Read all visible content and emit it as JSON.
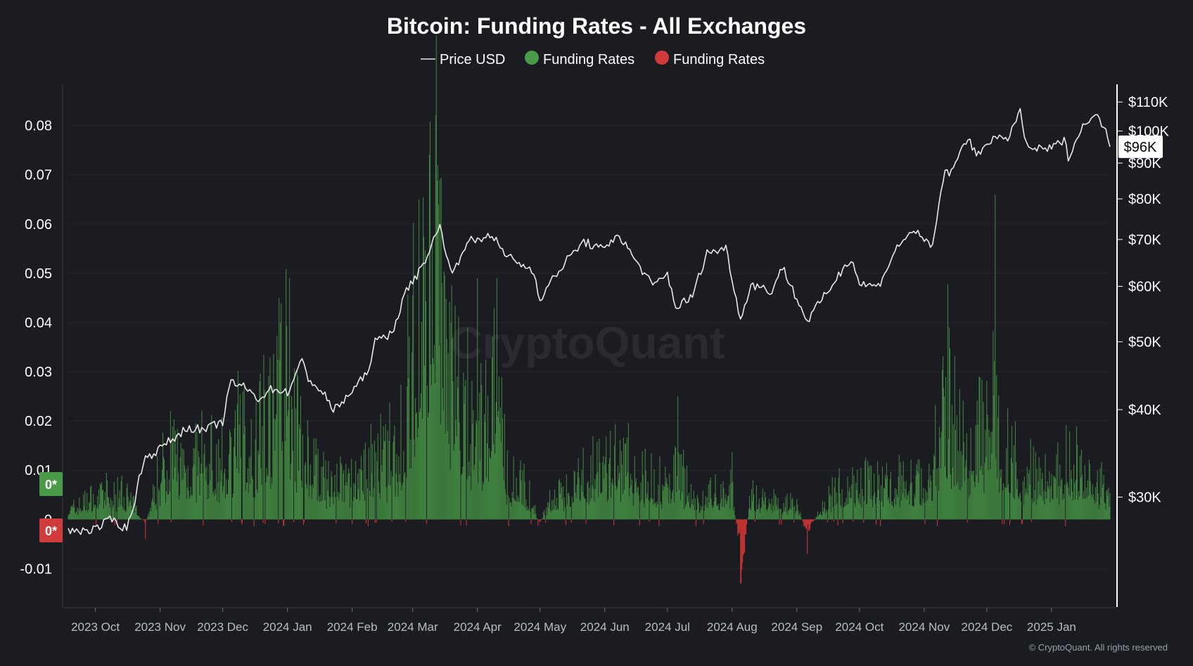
{
  "chart_data": {
    "type": "bar",
    "title": "Bitcoin: Funding Rates - All Exchanges",
    "legend": [
      {
        "name": "Price USD",
        "color": "#e8e8e8",
        "symbol": "line"
      },
      {
        "name": "Funding Rates",
        "color": "#4a9a4a",
        "symbol": "dot"
      },
      {
        "name": "Funding Rates",
        "color": "#d23b3b",
        "symbol": "dot"
      }
    ],
    "left_axis": {
      "ticks": [
        -0.01,
        0,
        0.01,
        0.02,
        0.03,
        0.04,
        0.05,
        0.06,
        0.07,
        0.08
      ],
      "tick_labels": [
        "-0.01",
        "0",
        "0.01",
        "0.02",
        "0.03",
        "0.04",
        "0.05",
        "0.06",
        "0.07",
        "0.08"
      ],
      "ylim": [
        -0.0175,
        0.0875
      ]
    },
    "right_axis": {
      "scale": "log",
      "ticks": [
        30000,
        40000,
        50000,
        60000,
        70000,
        80000,
        90000,
        100000,
        110000
      ],
      "tick_labels": [
        "$30K",
        "$40K",
        "$50K",
        "$60K",
        "$70K",
        "$80K",
        "$90K",
        "$100K",
        "$110K"
      ],
      "ylim": [
        21000,
        115000
      ]
    },
    "x_axis": {
      "range": [
        "2023-09-18",
        "2025-01-29"
      ],
      "ticks": [
        "2023-10-01",
        "2023-11-01",
        "2023-12-01",
        "2024-01-01",
        "2024-02-01",
        "2024-03-01",
        "2024-04-01",
        "2024-05-01",
        "2024-06-01",
        "2024-07-01",
        "2024-08-01",
        "2024-09-01",
        "2024-10-01",
        "2024-11-01",
        "2024-12-01",
        "2025-01-01"
      ],
      "tick_labels": [
        "2023 Oct",
        "2023 Nov",
        "2023 Dec",
        "2024 Jan",
        "2024 Feb",
        "2024 Mar",
        "2024 Apr",
        "2024 May",
        "2024 Jun",
        "2024 Jul",
        "2024 Aug",
        "2024 Sep",
        "2024 Oct",
        "2024 Nov",
        "2024 Dec",
        "2025 Jan"
      ]
    },
    "zero_badges": [
      "0*",
      "0*"
    ],
    "current_price_label": "$96K",
    "funding_anchors": [
      [
        "2023-09-18",
        0.002
      ],
      [
        "2023-10-01",
        0.005
      ],
      [
        "2023-10-15",
        0.006
      ],
      [
        "2023-10-25",
        -0.001
      ],
      [
        "2023-11-01",
        0.01
      ],
      [
        "2023-11-08",
        0.014
      ],
      [
        "2023-11-15",
        0.012
      ],
      [
        "2023-11-22",
        0.013
      ],
      [
        "2023-12-01",
        0.012
      ],
      [
        "2023-12-05",
        0.016
      ],
      [
        "2023-12-10",
        0.019
      ],
      [
        "2023-12-15",
        0.014
      ],
      [
        "2023-12-20",
        0.02
      ],
      [
        "2023-12-25",
        0.024
      ],
      [
        "2023-12-28",
        0.033
      ],
      [
        "2024-01-01",
        0.03
      ],
      [
        "2024-01-05",
        0.02
      ],
      [
        "2024-01-12",
        0.012
      ],
      [
        "2024-01-20",
        0.007
      ],
      [
        "2024-02-01",
        0.009
      ],
      [
        "2024-02-10",
        0.012
      ],
      [
        "2024-02-18",
        0.013
      ],
      [
        "2024-02-25",
        0.018
      ],
      [
        "2024-03-01",
        0.035
      ],
      [
        "2024-03-05",
        0.05
      ],
      [
        "2024-03-10",
        0.062
      ],
      [
        "2024-03-14",
        0.056
      ],
      [
        "2024-03-18",
        0.035
      ],
      [
        "2024-03-25",
        0.024
      ],
      [
        "2024-04-01",
        0.019
      ],
      [
        "2024-04-05",
        0.022
      ],
      [
        "2024-04-10",
        0.03
      ],
      [
        "2024-04-15",
        0.01
      ],
      [
        "2024-04-25",
        0.006
      ],
      [
        "2024-05-01",
        -0.001
      ],
      [
        "2024-05-05",
        0.004
      ],
      [
        "2024-05-15",
        0.006
      ],
      [
        "2024-05-25",
        0.01
      ],
      [
        "2024-06-01",
        0.012
      ],
      [
        "2024-06-10",
        0.012
      ],
      [
        "2024-06-20",
        0.009
      ],
      [
        "2024-07-01",
        0.007
      ],
      [
        "2024-07-05",
        0.011
      ],
      [
        "2024-07-15",
        0.004
      ],
      [
        "2024-07-25",
        0.006
      ],
      [
        "2024-08-01",
        0.008
      ],
      [
        "2024-08-05",
        -0.01
      ],
      [
        "2024-08-10",
        0.005
      ],
      [
        "2024-08-20",
        0.004
      ],
      [
        "2024-09-01",
        0.003
      ],
      [
        "2024-09-06",
        -0.003
      ],
      [
        "2024-09-12",
        0.002
      ],
      [
        "2024-09-20",
        0.006
      ],
      [
        "2024-10-01",
        0.007
      ],
      [
        "2024-10-15",
        0.008
      ],
      [
        "2024-10-25",
        0.009
      ],
      [
        "2024-11-01",
        0.007
      ],
      [
        "2024-11-06",
        0.014
      ],
      [
        "2024-11-12",
        0.028
      ],
      [
        "2024-11-18",
        0.016
      ],
      [
        "2024-11-25",
        0.018
      ],
      [
        "2024-12-01",
        0.02
      ],
      [
        "2024-12-05",
        0.022
      ],
      [
        "2024-12-12",
        0.013
      ],
      [
        "2024-12-20",
        0.01
      ],
      [
        "2025-01-01",
        0.009
      ],
      [
        "2025-01-10",
        0.012
      ],
      [
        "2025-01-29",
        0.006
      ]
    ],
    "funding_spikes": [
      [
        "2024-03-12",
        0.082
      ],
      [
        "2024-03-09",
        0.074
      ],
      [
        "2024-03-04",
        0.065
      ],
      [
        "2024-03-14",
        0.069
      ],
      [
        "2024-04-01",
        0.049
      ],
      [
        "2024-01-02",
        0.049
      ],
      [
        "2023-12-28",
        0.045
      ],
      [
        "2024-12-05",
        0.066
      ],
      [
        "2024-11-13",
        0.039
      ],
      [
        "2024-08-05",
        -0.013
      ],
      [
        "2024-09-06",
        -0.007
      ],
      [
        "2024-07-06",
        0.025
      ],
      [
        "2023-11-06",
        0.022
      ],
      [
        "2023-10-25",
        -0.004
      ]
    ],
    "price_anchors": [
      [
        "2023-09-18",
        26800
      ],
      [
        "2023-10-01",
        27000
      ],
      [
        "2023-10-09",
        27900
      ],
      [
        "2023-10-16",
        27000
      ],
      [
        "2023-10-20",
        29800
      ],
      [
        "2023-10-24",
        33900
      ],
      [
        "2023-11-01",
        35200
      ],
      [
        "2023-11-09",
        36700
      ],
      [
        "2023-11-15",
        37800
      ],
      [
        "2023-11-22",
        37300
      ],
      [
        "2023-12-01",
        38500
      ],
      [
        "2023-12-05",
        43800
      ],
      [
        "2023-12-10",
        43300
      ],
      [
        "2023-12-18",
        41500
      ],
      [
        "2023-12-25",
        42900
      ],
      [
        "2024-01-01",
        42300
      ],
      [
        "2024-01-08",
        46900
      ],
      [
        "2024-01-11",
        44400
      ],
      [
        "2024-01-20",
        41500
      ],
      [
        "2024-01-23",
        39800
      ],
      [
        "2024-02-01",
        42500
      ],
      [
        "2024-02-08",
        45000
      ],
      [
        "2024-02-12",
        49900
      ],
      [
        "2024-02-20",
        51500
      ],
      [
        "2024-02-28",
        60000
      ],
      [
        "2024-03-05",
        63500
      ],
      [
        "2024-03-14",
        73000
      ],
      [
        "2024-03-20",
        62000
      ],
      [
        "2024-03-27",
        69800
      ],
      [
        "2024-04-01",
        69600
      ],
      [
        "2024-04-08",
        71500
      ],
      [
        "2024-04-13",
        67000
      ],
      [
        "2024-04-20",
        65000
      ],
      [
        "2024-04-28",
        63000
      ],
      [
        "2024-05-01",
        57500
      ],
      [
        "2024-05-08",
        62000
      ],
      [
        "2024-05-15",
        66000
      ],
      [
        "2024-05-22",
        69500
      ],
      [
        "2024-06-01",
        67500
      ],
      [
        "2024-06-07",
        71500
      ],
      [
        "2024-06-14",
        66500
      ],
      [
        "2024-06-24",
        60000
      ],
      [
        "2024-07-01",
        62500
      ],
      [
        "2024-07-05",
        56000
      ],
      [
        "2024-07-13",
        58000
      ],
      [
        "2024-07-20",
        67000
      ],
      [
        "2024-07-29",
        68000
      ],
      [
        "2024-08-05",
        53500
      ],
      [
        "2024-08-10",
        60500
      ],
      [
        "2024-08-20",
        59000
      ],
      [
        "2024-08-25",
        64000
      ],
      [
        "2024-09-01",
        57500
      ],
      [
        "2024-09-06",
        53500
      ],
      [
        "2024-09-15",
        58500
      ],
      [
        "2024-09-27",
        66000
      ],
      [
        "2024-10-01",
        60500
      ],
      [
        "2024-10-10",
        60000
      ],
      [
        "2024-10-20",
        69000
      ],
      [
        "2024-10-29",
        72500
      ],
      [
        "2024-11-01",
        69500
      ],
      [
        "2024-11-05",
        68000
      ],
      [
        "2024-11-11",
        88000
      ],
      [
        "2024-11-14",
        87000
      ],
      [
        "2024-11-22",
        98500
      ],
      [
        "2024-11-26",
        91500
      ],
      [
        "2024-12-01",
        96500
      ],
      [
        "2024-12-05",
        98000
      ],
      [
        "2024-12-10",
        96500
      ],
      [
        "2024-12-17",
        106500
      ],
      [
        "2024-12-20",
        95000
      ],
      [
        "2024-12-27",
        94000
      ],
      [
        "2025-01-01",
        94500
      ],
      [
        "2025-01-07",
        97000
      ],
      [
        "2025-01-09",
        92000
      ],
      [
        "2025-01-15",
        100000
      ],
      [
        "2025-01-18",
        104000
      ],
      [
        "2025-01-24",
        104500
      ],
      [
        "2025-01-29",
        96000
      ]
    ]
  },
  "watermark": "CryptoQuant",
  "copyright": "© CryptoQuant. All rights reserved"
}
